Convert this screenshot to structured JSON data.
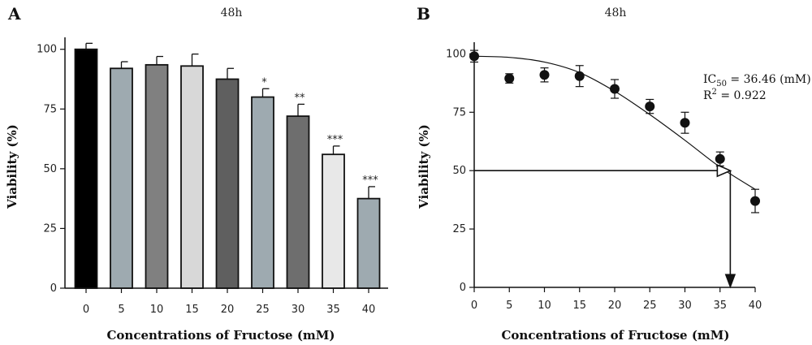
{
  "chart_data": [
    {
      "panel": "A",
      "type": "bar",
      "title": "48h",
      "xlabel": "Concentrations of Fructose (mM)",
      "ylabel": "Viability (%)",
      "ylim": [
        0,
        105
      ],
      "yticks": [
        "0",
        "25",
        "50",
        "75",
        "100"
      ],
      "categories": [
        "0",
        "5",
        "10",
        "15",
        "20",
        "25",
        "30",
        "35",
        "40"
      ],
      "values": [
        100,
        92,
        93.5,
        93,
        87.5,
        80,
        72,
        56,
        37.5
      ],
      "errors": [
        2.5,
        2.8,
        3.5,
        5,
        4.5,
        3.5,
        5,
        3.5,
        5
      ],
      "significance": [
        "",
        "",
        "",
        "",
        "",
        "*",
        "**",
        "***",
        "***"
      ],
      "colors": [
        "#000000",
        "#9eaab0",
        "#808080",
        "#d8d8d8",
        "#5f5f5f",
        "#9eaab0",
        "#6e6e6e",
        "#e8e8e8",
        "#9eaab0"
      ]
    },
    {
      "panel": "B",
      "type": "scatter",
      "title": "48h",
      "xlabel": "Concentrations of Fructose (mM)",
      "ylabel": "Viability (%)",
      "xlim": [
        0,
        40
      ],
      "ylim": [
        0,
        105
      ],
      "xticks": [
        "0",
        "5",
        "10",
        "15",
        "20",
        "25",
        "30",
        "35",
        "40"
      ],
      "yticks": [
        "0",
        "25",
        "50",
        "75",
        "100"
      ],
      "x": [
        0,
        5,
        10,
        15,
        20,
        25,
        30,
        35,
        40
      ],
      "y": [
        99,
        89.5,
        91,
        90.5,
        85,
        77.5,
        70.5,
        55,
        37
      ],
      "errors": [
        2.5,
        2,
        3,
        4.5,
        4,
        3,
        4.5,
        3,
        5
      ],
      "fit_curve": [
        [
          0,
          99
        ],
        [
          5,
          98.5
        ],
        [
          10,
          96.5
        ],
        [
          15,
          92
        ],
        [
          20,
          84
        ],
        [
          25,
          74
        ],
        [
          30,
          63
        ],
        [
          35,
          51.5
        ],
        [
          40,
          42
        ]
      ],
      "ic50_x": 36.46,
      "ic50_y": 50,
      "annotation": {
        "ic_main": "IC",
        "ic_sub": "50",
        "ic_value": " = 36.46 (mM)",
        "r_main": "R",
        "r_sup": "2",
        "r_value": " = 0.922"
      }
    }
  ]
}
